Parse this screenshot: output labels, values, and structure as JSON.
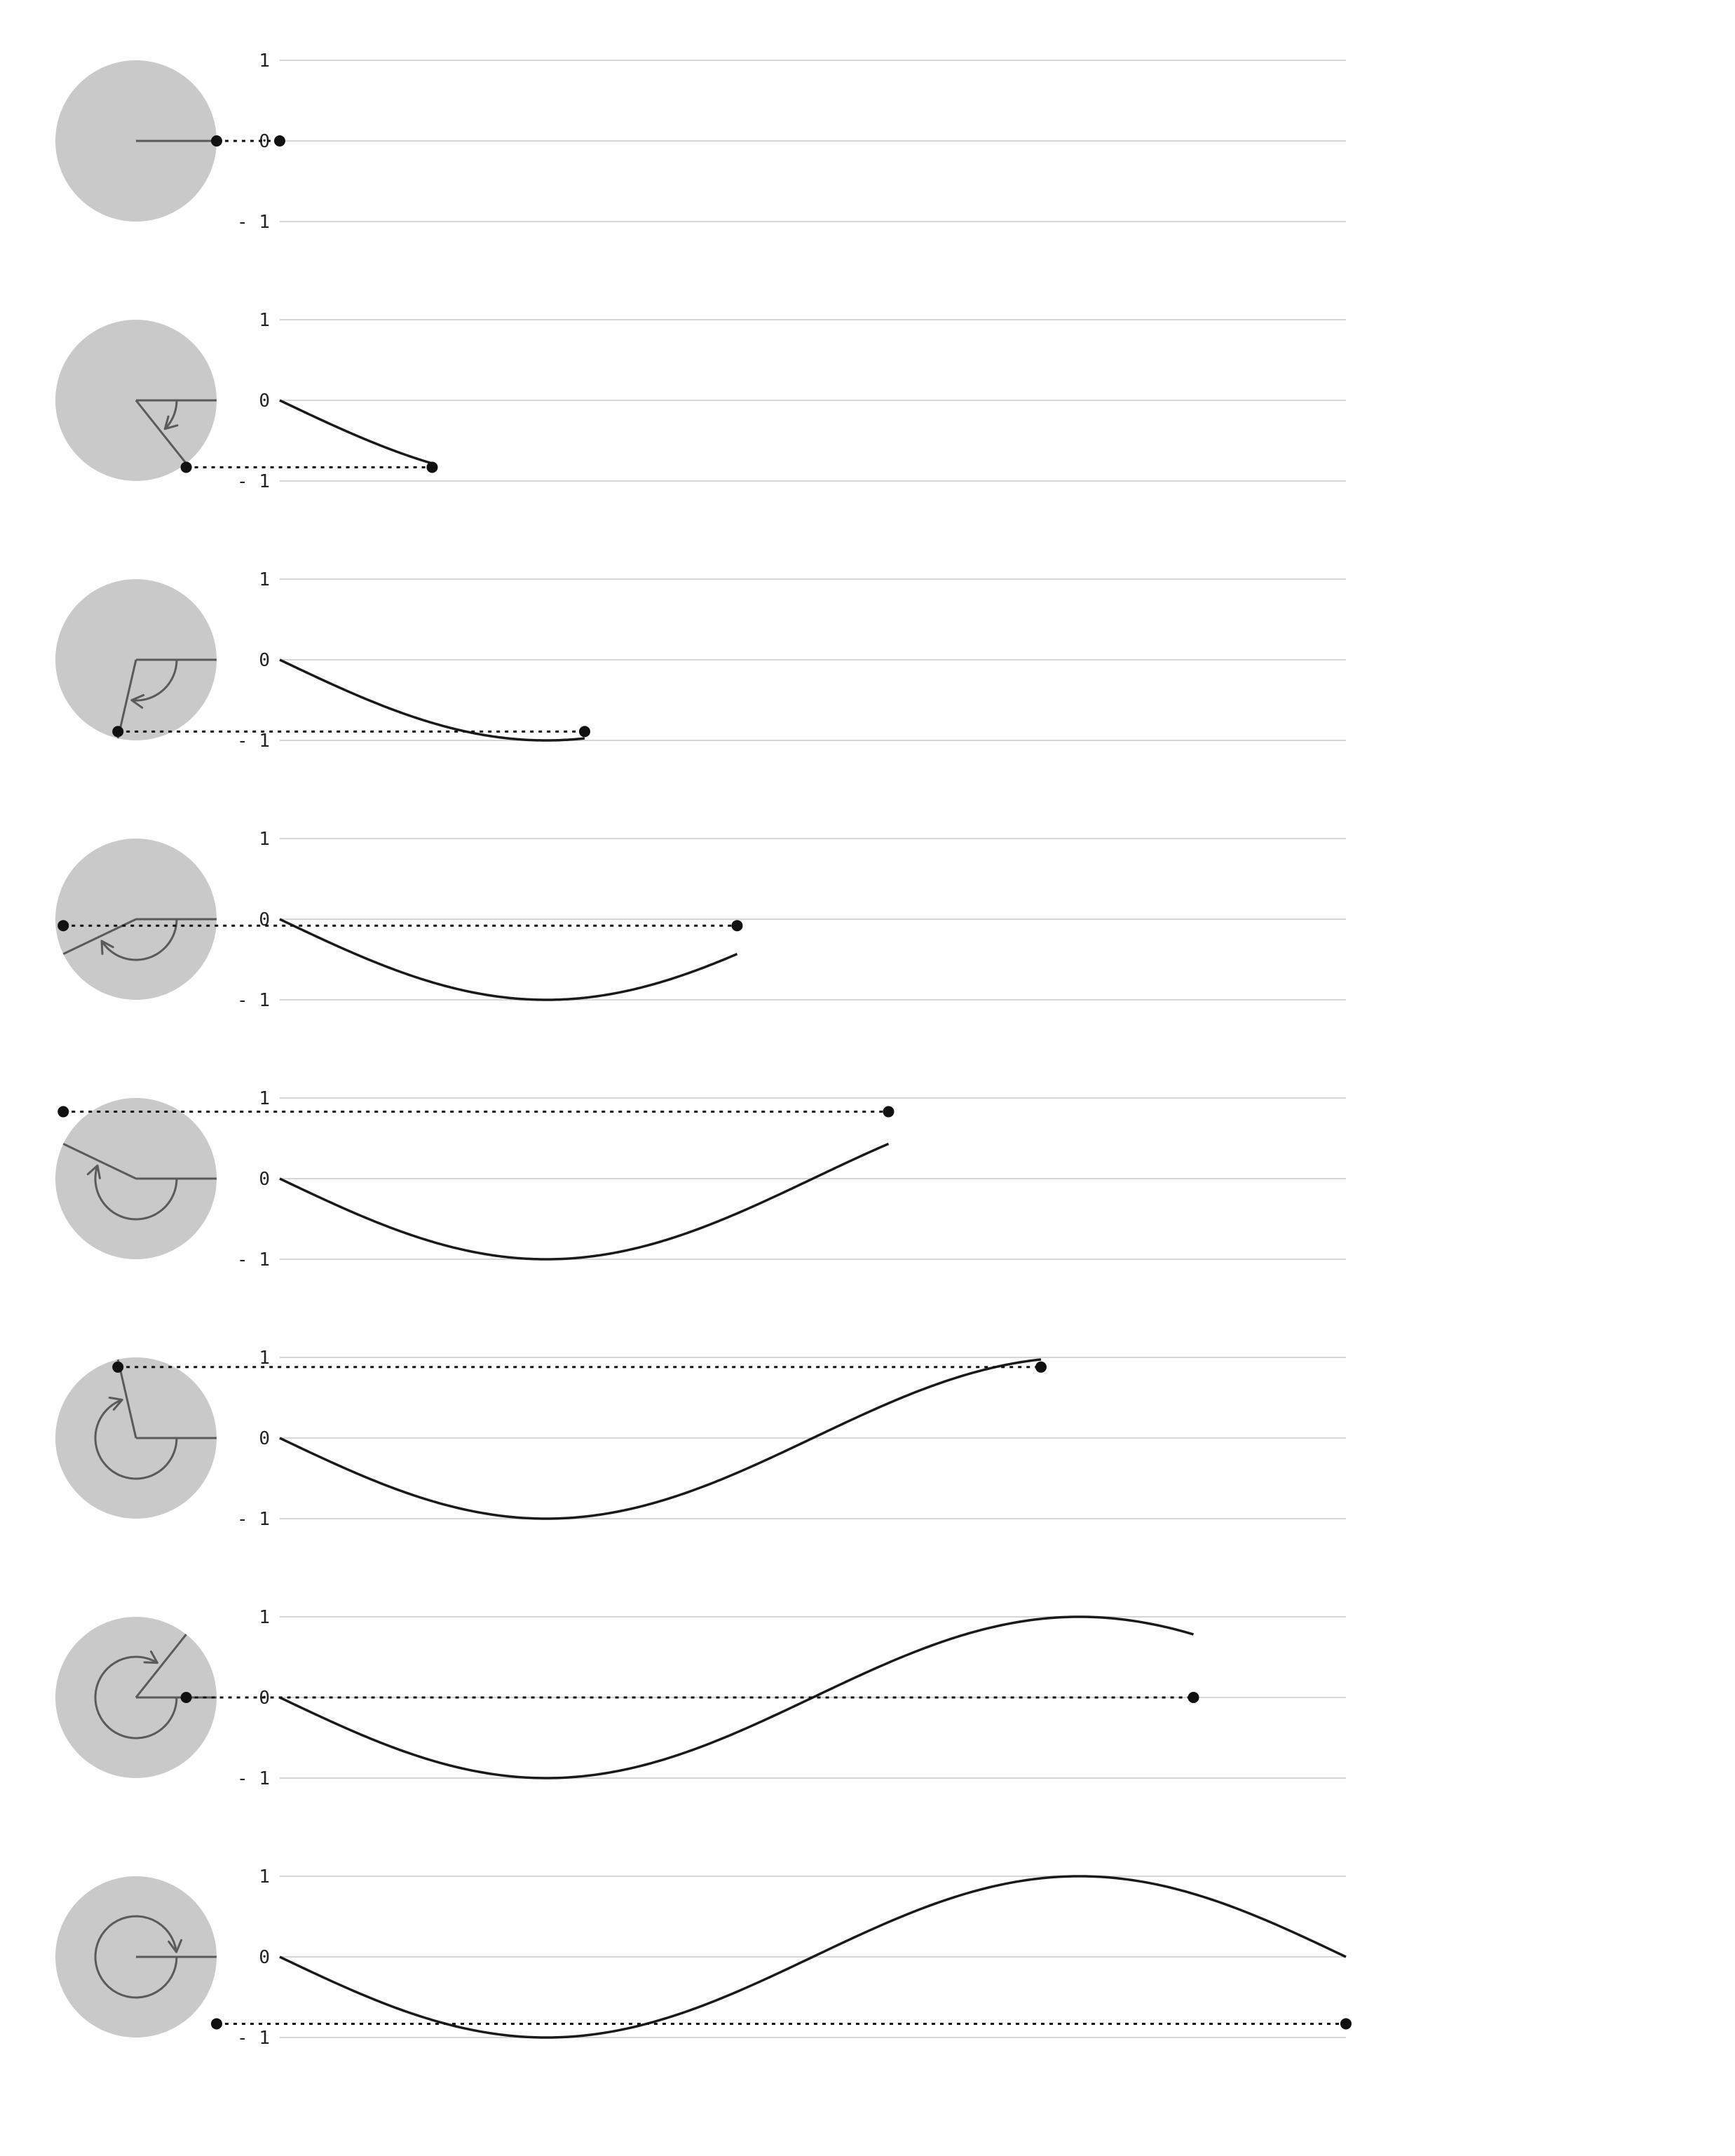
{
  "axis_labels": {
    "top": "1",
    "middle": "0",
    "bottom": "- 1"
  },
  "colors": {
    "circle_fill": "#c9c9c9",
    "gridline": "#d6d6d6",
    "radius_line": "#5a5a5a",
    "wave_curve": "#1a1a1a",
    "dot": "#111111",
    "dotted_connector": "#111111",
    "label_text": "#222222"
  },
  "chart_data": {
    "type": "line",
    "x_scale": "one full turn spans the plot width",
    "ylim": [
      -1,
      1
    ],
    "frames": [
      {
        "turns": 0.0,
        "y": 0.0
      },
      {
        "turns": 0.143,
        "y": -0.83
      },
      {
        "turns": 0.286,
        "y": -0.89
      },
      {
        "turns": 0.429,
        "y": -0.08
      },
      {
        "turns": 0.571,
        "y": 0.83
      },
      {
        "turns": 0.714,
        "y": 0.88
      },
      {
        "turns": 0.857,
        "y": 0.0
      },
      {
        "turns": 1.0,
        "y": -0.83
      }
    ]
  }
}
